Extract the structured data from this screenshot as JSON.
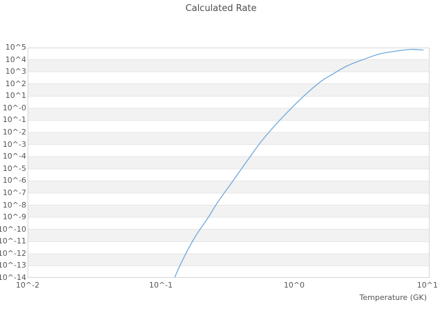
{
  "title": "Calculated Rate",
  "colors": {
    "line": "#6fa8dc",
    "band_light": "#ffffff",
    "band_dark": "#f2f2f2",
    "gridline": "#e5e5e5",
    "plot_border": "#d6d6d6",
    "text": "#555555",
    "title_text": "#4d4d4d",
    "background": "#ffffff"
  },
  "chart_data": {
    "type": "line",
    "title": "Calculated Rate",
    "xlabel": "Temperature (GK)",
    "ylabel": "",
    "x_scale": "log10",
    "y_scale": "log10",
    "xlim_log10": [
      -2,
      1.016
    ],
    "ylim_log10": [
      -14,
      5
    ],
    "x_ticks_log10": [
      -2,
      -1,
      0,
      1
    ],
    "x_tick_labels": [
      "10^-2",
      "10^-1",
      "10^0",
      "10^1"
    ],
    "y_ticks_log10": [
      5,
      4,
      3,
      2,
      1,
      0,
      -1,
      -2,
      -3,
      -4,
      -5,
      -6,
      -7,
      -8,
      -9,
      -10,
      -11,
      -12,
      -13,
      -14
    ],
    "y_tick_labels": [
      "10^5",
      "10^4",
      "10^3",
      "10^2",
      "10^1",
      "10^-0",
      "10^-1",
      "10^-2",
      "10^-3",
      "10^-4",
      "10^-5",
      "10^-6",
      "10^-7",
      "10^-8",
      "10^-9",
      "10^-10",
      "10^-11",
      "10^-12",
      "10^-13",
      "10^-14"
    ],
    "grid": "horizontal-bands-alternating",
    "legend": "none",
    "series": [
      {
        "name": "calculated-rate",
        "color": "#6fa8dc",
        "points_log10": [
          [
            -0.898,
            -14.0
          ],
          [
            -0.845,
            -12.7
          ],
          [
            -0.748,
            -10.7
          ],
          [
            -0.65,
            -9.1
          ],
          [
            -0.57,
            -7.7
          ],
          [
            -0.456,
            -5.95
          ],
          [
            -0.35,
            -4.3
          ],
          [
            -0.238,
            -2.62
          ],
          [
            -0.1,
            -0.9
          ],
          [
            0.062,
            0.9
          ],
          [
            0.2,
            2.2
          ],
          [
            0.28,
            2.75
          ],
          [
            0.4,
            3.5
          ],
          [
            0.54,
            4.1
          ],
          [
            0.65,
            4.5
          ],
          [
            0.772,
            4.72
          ],
          [
            0.876,
            4.85
          ],
          [
            0.969,
            4.8
          ]
        ]
      }
    ]
  }
}
